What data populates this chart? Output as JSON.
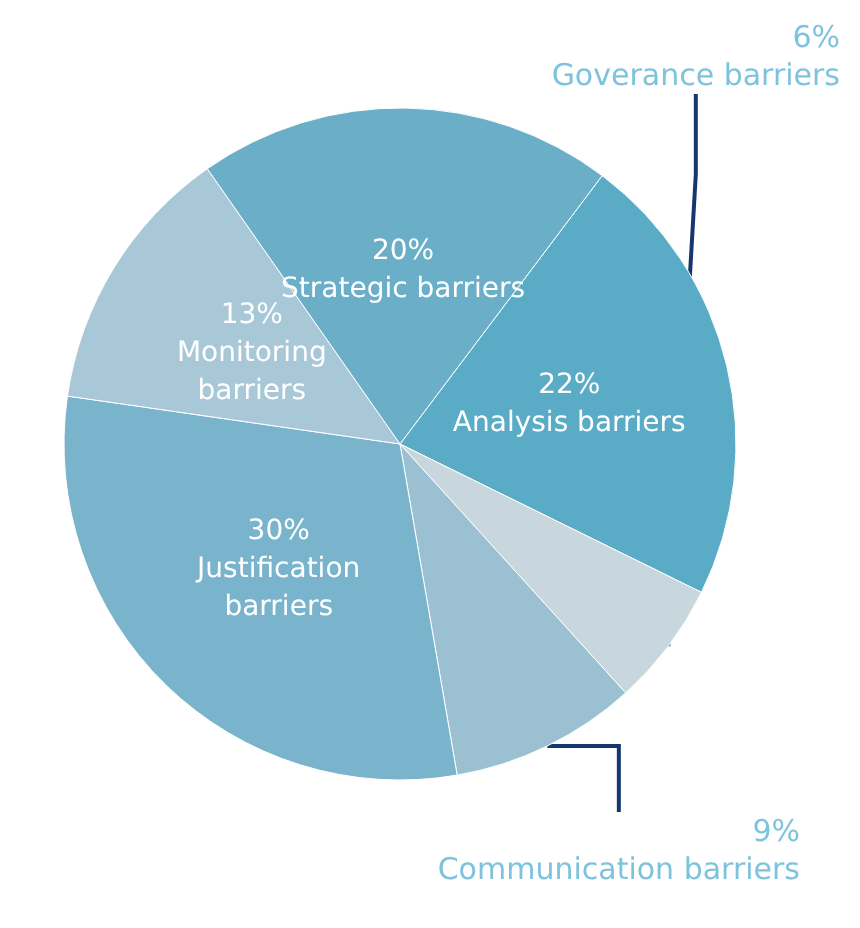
{
  "chart_data": {
    "type": "pie",
    "categories": [
      "Analysis barriers",
      "Goverance barriers",
      "Communication barriers",
      "Justification\nbarriers",
      "Monitoring\nbarriers",
      "Strategic barriers"
    ],
    "values": [
      22,
      6,
      9,
      30,
      13,
      20
    ],
    "value_labels": [
      "22%",
      "6%",
      "9%",
      "30%",
      "13%",
      "20%"
    ],
    "colors": [
      "#5aabc6",
      "#c8d6de",
      "#9ac0d2",
      "#7ab3cc",
      "#a8c8d8",
      "#6aaec8"
    ]
  }
}
